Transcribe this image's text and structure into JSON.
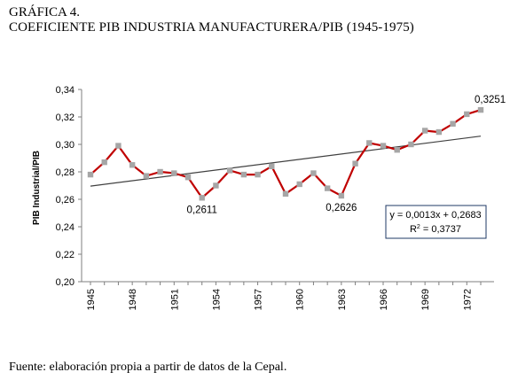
{
  "figure": {
    "label": "GRÁFICA 4.",
    "title": "COEFICIENTE PIB INDUSTRIA MANUFACTURERA/PIB (1945-1975)",
    "source": "Fuente: elaboración propia a partir de datos de la Cepal."
  },
  "chart_data": {
    "type": "line",
    "title": "COEFICIENTE PIB INDUSTRIA MANUFACTURERA/PIB (1945-1975)",
    "xlabel": "",
    "ylabel": "PIB Industrial/PIB",
    "x": [
      1945,
      1946,
      1947,
      1948,
      1949,
      1950,
      1951,
      1952,
      1953,
      1954,
      1955,
      1956,
      1957,
      1958,
      1959,
      1960,
      1961,
      1962,
      1963,
      1964,
      1965,
      1966,
      1967,
      1968,
      1969,
      1970,
      1971,
      1972,
      1973
    ],
    "series": [
      {
        "values": [
          0.278,
          0.287,
          0.299,
          0.285,
          0.277,
          0.28,
          0.279,
          0.276,
          0.2611,
          0.27,
          0.281,
          0.278,
          0.278,
          0.284,
          0.264,
          0.271,
          0.279,
          0.268,
          0.2626,
          0.286,
          0.301,
          0.299,
          0.296,
          0.3,
          0.31,
          0.309,
          0.315,
          0.322,
          0.3251
        ],
        "color": "#c00000",
        "marker_color": "#a6a6a6"
      }
    ],
    "trendline": {
      "slope": 0.0013,
      "intercept": 0.2683,
      "color": "#404040",
      "equation": "y = 0,0013x + 0,2683",
      "r2_prefix": "R",
      "r2_sup": "2",
      "r2_suffix": " = 0,3737"
    },
    "ylim": [
      0.2,
      0.34
    ],
    "yticks": [
      "0,20",
      "0,22",
      "0,24",
      "0,26",
      "0,28",
      "0,30",
      "0,32",
      "0,34"
    ],
    "xticks": [
      "1945",
      "1948",
      "1951",
      "1954",
      "1957",
      "1960",
      "1963",
      "1966",
      "1969",
      "1972"
    ],
    "data_labels": [
      {
        "index": 8,
        "text": "0,2611"
      },
      {
        "index": 18,
        "text": "0,2626"
      },
      {
        "index": 28,
        "text": "0,3251"
      }
    ],
    "grid": false,
    "legend": "none"
  }
}
